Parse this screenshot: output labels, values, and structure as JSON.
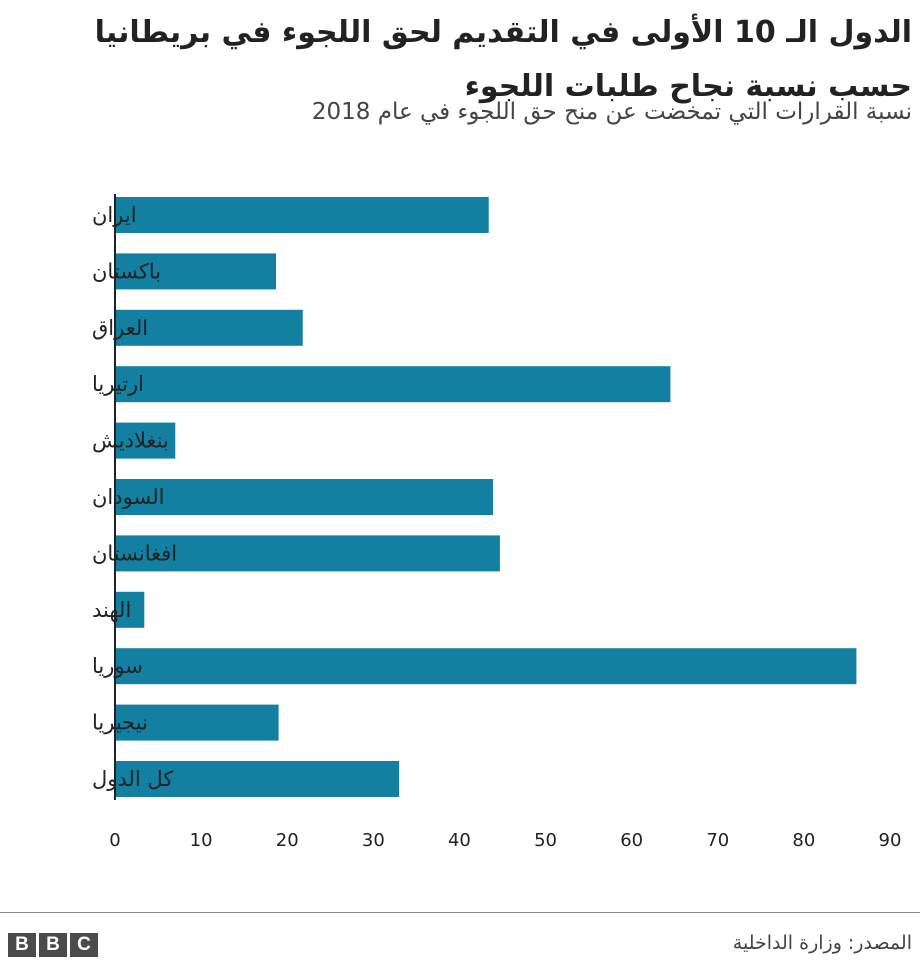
{
  "header": {
    "title": "الدول الـ 10 الأولى في التقديم لحق اللجوء في بريطانيا حسب نسبة نجاح طلبات اللجوء",
    "subtitle": "نسبة القرارات التي تمخضت عن منح حق اللجوء في عام 2018"
  },
  "footer": {
    "source": "المصدر: وزارة الداخلية",
    "logo_letters": [
      "B",
      "B",
      "C"
    ]
  },
  "colors": {
    "bar": "#1380a1",
    "axis": "#222222",
    "text": "#222222"
  },
  "chart_data": {
    "type": "bar",
    "orientation": "horizontal",
    "categories": [
      "ايران",
      "باكستان",
      "العراق",
      "ارتيريا",
      "بنغلاديش",
      "السودان",
      "افغانستان",
      "الهند",
      "سوريا",
      "نيجيريا",
      "كل الدول"
    ],
    "values": [
      43.4,
      18.7,
      21.8,
      64.5,
      7,
      43.9,
      44.7,
      3.4,
      86.1,
      19,
      33
    ],
    "title": "الدول الـ 10 الأولى في التقديم لحق اللجوء في بريطانيا حسب نسبة نجاح طلبات اللجوء",
    "subtitle": "نسبة القرارات التي تمخضت عن منح حق اللجوء في عام 2018",
    "xlabel": "",
    "ylabel": "",
    "xlim": [
      0,
      90
    ],
    "xticks": [
      0,
      10,
      20,
      30,
      40,
      50,
      60,
      70,
      80,
      90
    ],
    "grid": false,
    "legend": "none"
  }
}
